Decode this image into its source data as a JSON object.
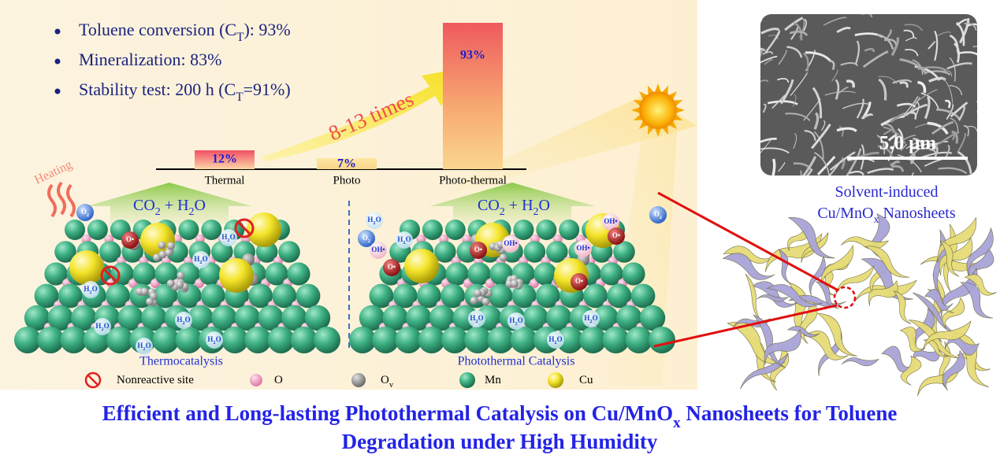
{
  "highlights": [
    [
      "Toluene conversion (C",
      "T",
      "): 93%"
    ],
    [
      "Mineralization: 83%"
    ],
    [
      "Stability test: 200 h (C",
      "T",
      "=91%)"
    ]
  ],
  "bar_chart": {
    "categories": [
      "Thermal",
      "Photo",
      "Photo-thermal"
    ],
    "values": [
      12,
      7,
      93
    ],
    "value_labels": [
      "12%",
      "7%",
      "93%"
    ]
  },
  "enhancement_label": "8-13 times",
  "heating_label": "Heating",
  "product_label": [
    "CO",
    "2",
    " + H",
    "2",
    "O"
  ],
  "left_panel": {
    "title": "Thermocatalysis",
    "molecules": [
      [
        "O",
        "2"
      ],
      [
        "O•"
      ],
      [
        "H",
        "2",
        "O"
      ],
      [
        "H",
        "2",
        "O"
      ],
      [
        "H",
        "2",
        "O"
      ],
      [
        "H",
        "2",
        "O"
      ],
      [
        "H",
        "2",
        "O"
      ],
      [
        "H",
        "2",
        "O"
      ],
      [
        "H",
        "2",
        "O"
      ]
    ]
  },
  "right_panel": {
    "title": "Photothermal Catalysis",
    "molecules": [
      [
        "O",
        "2"
      ],
      [
        "O",
        "2"
      ],
      [
        "H",
        "2",
        "O"
      ],
      [
        "H",
        "2",
        "O"
      ],
      [
        "H",
        "2",
        "O"
      ],
      [
        "H",
        "2",
        "O"
      ],
      [
        "H",
        "2",
        "O"
      ],
      [
        "H",
        "2",
        "O"
      ],
      [
        "OH•"
      ],
      [
        "OH•"
      ],
      [
        "OH•"
      ],
      [
        "OH•"
      ],
      [
        "O•"
      ],
      [
        "O•"
      ],
      [
        "O•"
      ],
      [
        "O•"
      ]
    ]
  },
  "legend": [
    [
      "Nonreactive site"
    ],
    [
      "O"
    ],
    [
      "O",
      "v"
    ],
    [
      "Mn"
    ],
    [
      "Cu"
    ]
  ],
  "sem_image": {
    "scale_bar": "5.0 μm"
  },
  "nanosheet_caption": [
    [
      "Solvent-induced"
    ],
    [
      "Cu/MnO",
      "x",
      " Nanosheets"
    ]
  ],
  "title": [
    [
      "Efficient and Long-lasting Photothermal Catalysis on Cu/MnO",
      "x",
      " Nanosheets for Toluene"
    ],
    [
      "Degradation under High Humidity"
    ]
  ]
}
